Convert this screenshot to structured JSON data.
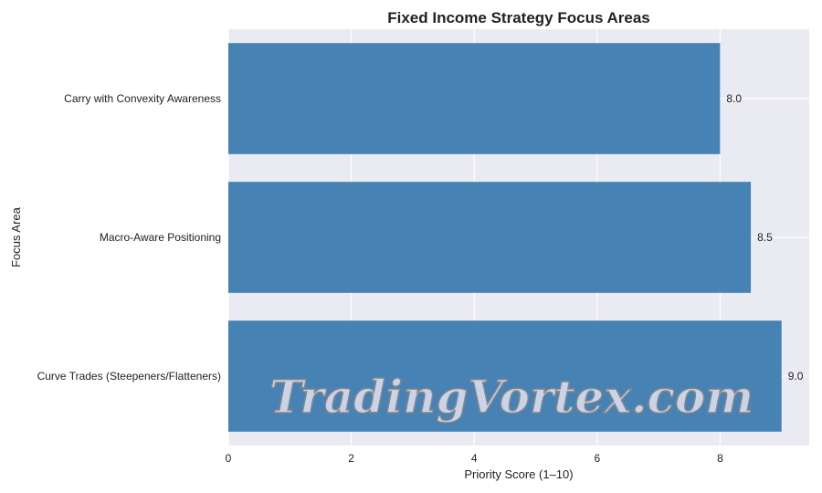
{
  "chart_data": {
    "type": "bar",
    "orientation": "horizontal",
    "title": "Fixed Income Strategy Focus Areas",
    "xlabel": "Priority Score (1–10)",
    "ylabel": "Focus Area",
    "categories": [
      "Carry with Convexity Awareness",
      "Macro-Aware Positioning",
      "Curve Trades (Steepeners/Flatteners)"
    ],
    "values": [
      8.0,
      8.5,
      9.0
    ],
    "data_labels": [
      "8.0",
      "8.5",
      "9.0"
    ],
    "xlim": [
      0,
      9.45
    ],
    "xticks": [
      "0",
      "2",
      "4",
      "6",
      "8"
    ],
    "grid": true,
    "bar_color": "#4682b4",
    "background_color": "#eaeaf2"
  },
  "watermark": "TradingVortex.com"
}
